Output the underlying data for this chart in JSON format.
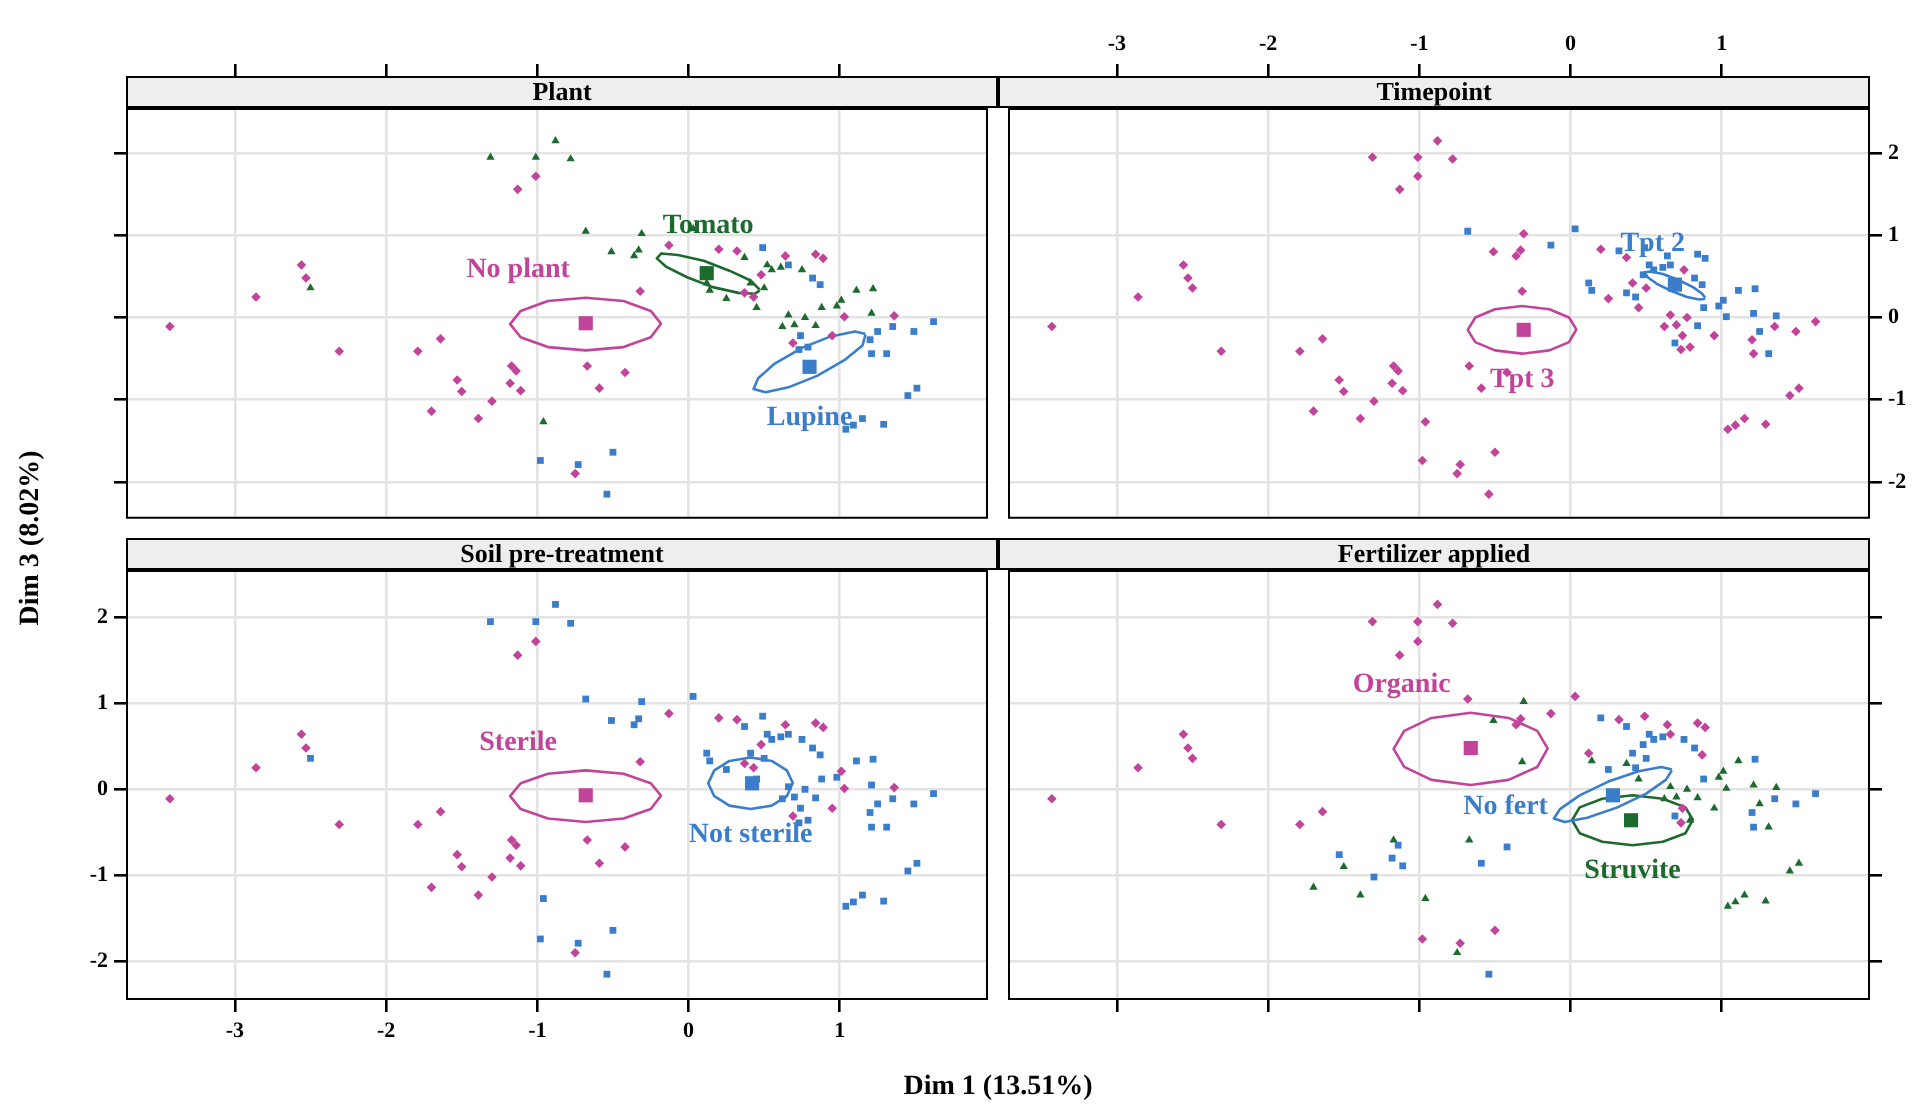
{
  "chart_data": [
    {
      "type": "scatter",
      "title": "Plant",
      "xlim": [
        -3.72,
        1.98
      ],
      "ylim": [
        -2.45,
        2.55
      ],
      "xticks": [
        -3,
        -2,
        -1,
        0,
        1
      ],
      "yticks": [
        -2,
        -1,
        0,
        1,
        2
      ],
      "grid": true,
      "tick_labels": false,
      "series": [
        {
          "type": "scatter",
          "color": "#c2449a",
          "marker": "diamond",
          "x": [
            -1.01,
            -1.13,
            -0.13,
            0.2,
            0.32,
            0.64,
            0.84,
            0.89,
            0.48,
            0.37,
            0.43,
            -0.32,
            1.03,
            1.36,
            0.95,
            0.69,
            -2.56,
            -2.53,
            -2.86,
            -3.43,
            -2.31,
            -1.79,
            -1.64,
            -1.53,
            -1.5,
            -1.7,
            -1.39,
            -1.3,
            -1.17,
            -1.14,
            -1.18,
            -1.11,
            -0.67,
            -0.42,
            -0.59,
            -0.75
          ],
          "values": [
            1.72,
            1.56,
            0.88,
            0.83,
            0.81,
            0.75,
            0.77,
            0.72,
            0.52,
            0.3,
            0.25,
            0.32,
            0.01,
            0.02,
            -0.22,
            -0.31,
            0.64,
            0.48,
            0.25,
            -0.11,
            -0.41,
            -0.41,
            -0.26,
            -0.76,
            -0.9,
            -1.14,
            -1.23,
            -1.02,
            -0.59,
            -0.65,
            -0.8,
            -0.89,
            -0.59,
            -0.67,
            -0.86,
            -1.9
          ]
        },
        {
          "type": "scatter",
          "color": "#c2449a",
          "marker": "square",
          "x": [
            -0.68
          ],
          "values": [
            -0.07
          ]
        },
        {
          "type": "line",
          "name": "No plant",
          "color": "#c2449a",
          "marker": "none",
          "x": [
            -0.18,
            -0.25,
            -0.43,
            -0.68,
            -0.93,
            -1.11,
            -1.18,
            -1.11,
            -0.93,
            -0.68,
            -0.43,
            -0.25,
            -0.18
          ],
          "values": [
            -0.08,
            0.08,
            0.2,
            0.24,
            0.2,
            0.08,
            -0.08,
            -0.24,
            -0.36,
            -0.4,
            -0.36,
            -0.24,
            -0.07
          ]
        },
        {
          "type": "scatter",
          "color": "#1d6a2e",
          "marker": "triangle",
          "x": [
            -0.88,
            -1.31,
            -1.01,
            -0.78,
            -0.68,
            -0.31,
            0.03,
            -0.51,
            -0.33,
            -0.36,
            0.37,
            0.52,
            0.55,
            0.61,
            0.75,
            0.41,
            0.5,
            0.14,
            0.12,
            0.25,
            1.11,
            1.22,
            0.45,
            1.01,
            0.88,
            0.98,
            1.21,
            0.66,
            0.77,
            0.62,
            0.7,
            0.84,
            -2.5,
            -0.96
          ],
          "values": [
            2.15,
            1.95,
            1.95,
            1.93,
            1.05,
            1.02,
            1.08,
            0.8,
            0.82,
            0.75,
            0.73,
            0.64,
            0.58,
            0.61,
            0.58,
            0.42,
            0.36,
            0.33,
            0.42,
            0.23,
            0.33,
            0.35,
            0.12,
            0.21,
            0.12,
            0.14,
            0.05,
            0.03,
            0.0,
            -0.11,
            -0.09,
            -0.1,
            0.36,
            -1.27
          ]
        },
        {
          "type": "scatter",
          "color": "#1d6a2e",
          "marker": "square",
          "x": [
            0.12
          ],
          "values": [
            0.54
          ]
        },
        {
          "type": "line",
          "name": "Tomato",
          "color": "#1d6a2e",
          "marker": "none",
          "x": [
            0.47,
            0.41,
            0.27,
            0.1,
            -0.07,
            -0.18,
            -0.21,
            -0.15,
            -0.01,
            0.16,
            0.33,
            0.44,
            0.47
          ],
          "values": [
            0.34,
            0.45,
            0.57,
            0.69,
            0.76,
            0.78,
            0.72,
            0.62,
            0.49,
            0.37,
            0.3,
            0.29,
            0.33
          ]
        },
        {
          "type": "scatter",
          "color": "#3a7ecb",
          "marker": "square",
          "x": [
            0.49,
            0.66,
            0.82,
            0.87,
            1.62,
            1.35,
            1.49,
            1.25,
            1.2,
            0.74,
            0.73,
            0.79,
            1.21,
            1.31,
            1.51,
            1.45,
            1.15,
            1.09,
            1.04,
            1.29,
            -0.98,
            -0.73,
            -0.5,
            -0.54
          ],
          "values": [
            0.85,
            0.64,
            0.48,
            0.4,
            -0.05,
            -0.11,
            -0.17,
            -0.17,
            -0.27,
            -0.22,
            -0.39,
            -0.36,
            -0.44,
            -0.44,
            -0.86,
            -0.95,
            -1.23,
            -1.31,
            -1.36,
            -1.3,
            -1.74,
            -1.79,
            -1.64,
            -2.15
          ]
        },
        {
          "type": "scatter",
          "color": "#3a7ecb",
          "marker": "square",
          "x": [
            0.8
          ],
          "values": [
            -0.6
          ]
        },
        {
          "type": "line",
          "name": "Lupine",
          "color": "#3a7ecb",
          "marker": "none",
          "x": [
            1.17,
            1.15,
            1.03,
            0.85,
            0.66,
            0.51,
            0.43,
            0.46,
            0.57,
            0.75,
            0.94,
            1.1,
            1.17
          ],
          "values": [
            -0.21,
            -0.34,
            -0.52,
            -0.71,
            -0.85,
            -0.91,
            -0.87,
            -0.74,
            -0.56,
            -0.37,
            -0.23,
            -0.17,
            -0.2
          ]
        }
      ]
    },
    {
      "type": "scatter",
      "title": "Timepoint",
      "xlim": [
        -3.72,
        1.98
      ],
      "ylim": [
        -2.45,
        2.55
      ],
      "xticks": [
        -3,
        -2,
        -1,
        0,
        1
      ],
      "yticks": [
        -2,
        -1,
        0,
        1,
        2
      ],
      "grid": true,
      "series": [
        {
          "type": "scatter",
          "color": "#3a7ecb",
          "marker": "square",
          "x": [
            -0.68,
            0.03,
            -0.13,
            0.32,
            0.49,
            0.64,
            0.84,
            0.89,
            0.66,
            0.52,
            0.55,
            0.61,
            0.48,
            0.82,
            0.87,
            0.14,
            0.12,
            0.37,
            0.43,
            1.11,
            1.22,
            1.01,
            0.88,
            0.98,
            1.21,
            1.03,
            1.36,
            0.84,
            1.25,
            0.69,
            1.31
          ],
          "values": [
            1.05,
            1.08,
            0.88,
            0.81,
            0.85,
            0.75,
            0.77,
            0.72,
            0.64,
            0.64,
            0.58,
            0.61,
            0.52,
            0.48,
            0.4,
            0.33,
            0.42,
            0.3,
            0.25,
            0.33,
            0.35,
            0.21,
            0.12,
            0.14,
            0.05,
            0.01,
            0.02,
            -0.1,
            -0.17,
            -0.31,
            -0.44
          ]
        },
        {
          "type": "scatter",
          "color": "#3a7ecb",
          "marker": "square",
          "x": [
            0.69
          ],
          "values": [
            0.4
          ]
        },
        {
          "type": "line",
          "name": "Tpt 2",
          "color": "#3a7ecb",
          "marker": "none",
          "x": [
            0.89,
            0.85,
            0.77,
            0.67,
            0.57,
            0.51,
            0.49,
            0.53,
            0.61,
            0.71,
            0.81,
            0.87,
            0.89
          ],
          "values": [
            0.23,
            0.22,
            0.25,
            0.32,
            0.41,
            0.49,
            0.55,
            0.56,
            0.53,
            0.46,
            0.37,
            0.29,
            0.24
          ]
        },
        {
          "type": "scatter",
          "color": "#c2449a",
          "marker": "diamond",
          "x": [
            -0.88,
            -1.31,
            -1.01,
            -0.78,
            -1.01,
            -1.13,
            -0.31,
            -0.51,
            -0.33,
            -0.36,
            0.2,
            0.37,
            0.75,
            0.41,
            0.5,
            0.25,
            -0.32,
            0.45,
            0.66,
            0.77,
            1.62,
            0.62,
            0.7,
            1.35,
            1.49,
            1.2,
            0.74,
            0.95,
            0.73,
            0.79,
            1.21,
            1.51,
            1.45,
            1.15,
            1.09,
            1.04,
            1.29,
            -2.56,
            -2.53,
            -2.5,
            -2.86,
            -3.43,
            -2.31,
            -1.79,
            -1.64,
            -1.53,
            -1.5,
            -1.7,
            -1.39,
            -1.3,
            -1.17,
            -1.14,
            -1.18,
            -1.11,
            -0.67,
            -0.42,
            -0.59,
            -0.96,
            -0.98,
            -0.73,
            -0.75,
            -0.5,
            -0.54
          ],
          "values": [
            2.15,
            1.95,
            1.95,
            1.93,
            1.72,
            1.56,
            1.02,
            0.8,
            0.82,
            0.75,
            0.83,
            0.73,
            0.58,
            0.42,
            0.36,
            0.23,
            0.32,
            0.12,
            0.03,
            0.0,
            -0.05,
            -0.11,
            -0.09,
            -0.11,
            -0.17,
            -0.27,
            -0.22,
            -0.22,
            -0.39,
            -0.36,
            -0.44,
            -0.86,
            -0.95,
            -1.23,
            -1.31,
            -1.36,
            -1.3,
            0.64,
            0.48,
            0.36,
            0.25,
            -0.11,
            -0.41,
            -0.41,
            -0.26,
            -0.76,
            -0.9,
            -1.14,
            -1.23,
            -1.02,
            -0.59,
            -0.65,
            -0.8,
            -0.89,
            -0.59,
            -0.67,
            -0.86,
            -1.27,
            -1.74,
            -1.79,
            -1.9,
            -1.64,
            -2.15
          ]
        },
        {
          "type": "scatter",
          "color": "#c2449a",
          "marker": "square",
          "x": [
            -0.31
          ],
          "values": [
            -0.15
          ]
        },
        {
          "type": "line",
          "name": "Tpt 3",
          "color": "#c2449a",
          "marker": "none",
          "x": [
            0.04,
            -0.01,
            -0.14,
            -0.32,
            -0.5,
            -0.63,
            -0.68,
            -0.63,
            -0.5,
            -0.32,
            -0.14,
            -0.01,
            0.04
          ],
          "values": [
            -0.15,
            0,
            0.1,
            0.14,
            0.1,
            0,
            -0.15,
            -0.3,
            -0.4,
            -0.44,
            -0.4,
            -0.3,
            -0.14
          ]
        }
      ]
    },
    {
      "type": "scatter",
      "title": "Soil pre-treatment",
      "xlabel": "Dim 1 (13.51%)",
      "ylabel": "Dim 3 (8.02%)",
      "xlim": [
        -3.72,
        1.98
      ],
      "ylim": [
        -2.45,
        2.55
      ],
      "xticks": [
        -3,
        -2,
        -1,
        0,
        1
      ],
      "yticks": [
        -2,
        -1,
        0,
        1,
        2
      ],
      "grid": true,
      "series": [
        {
          "type": "scatter",
          "color": "#c2449a",
          "marker": "diamond",
          "x": [
            -1.01,
            -1.13,
            -0.13,
            0.2,
            0.32,
            0.64,
            0.84,
            0.89,
            0.48,
            0.37,
            0.43,
            -0.32,
            1.01,
            1.03,
            1.36,
            0.95,
            0.69,
            -2.56,
            -2.53,
            -2.86,
            -3.43,
            -2.31,
            -1.79,
            -1.64,
            -1.53,
            -1.5,
            -1.7,
            -1.39,
            -1.3,
            -1.17,
            -1.14,
            -1.18,
            -1.11,
            -0.67,
            -0.42,
            -0.59,
            -0.75
          ],
          "values": [
            1.72,
            1.56,
            0.88,
            0.83,
            0.81,
            0.75,
            0.77,
            0.72,
            0.52,
            0.3,
            0.25,
            0.32,
            0.21,
            0.01,
            0.02,
            -0.22,
            -0.31,
            0.64,
            0.48,
            0.25,
            -0.11,
            -0.41,
            -0.41,
            -0.26,
            -0.76,
            -0.9,
            -1.14,
            -1.23,
            -1.02,
            -0.59,
            -0.65,
            -0.8,
            -0.89,
            -0.59,
            -0.67,
            -0.86,
            -1.9
          ]
        },
        {
          "type": "scatter",
          "color": "#c2449a",
          "marker": "square",
          "x": [
            -0.68
          ],
          "values": [
            -0.07
          ]
        },
        {
          "type": "line",
          "name": "Sterile",
          "color": "#c2449a",
          "marker": "none",
          "x": [
            -0.18,
            -0.25,
            -0.43,
            -0.68,
            -0.93,
            -1.11,
            -1.18,
            -1.11,
            -0.93,
            -0.68,
            -0.43,
            -0.25,
            -0.18
          ],
          "values": [
            -0.08,
            0.07,
            0.18,
            0.22,
            0.18,
            0.07,
            -0.08,
            -0.23,
            -0.34,
            -0.38,
            -0.34,
            -0.23,
            -0.07
          ]
        },
        {
          "type": "scatter",
          "color": "#3a7ecb",
          "marker": "square",
          "x": [
            -0.88,
            -1.31,
            -1.01,
            -0.78,
            -0.68,
            -0.31,
            0.03,
            -0.51,
            -0.33,
            -0.36,
            0.49,
            0.37,
            0.66,
            0.52,
            0.55,
            0.61,
            0.75,
            0.82,
            0.87,
            0.41,
            0.5,
            0.14,
            0.12,
            0.25,
            1.11,
            1.22,
            0.45,
            0.88,
            0.98,
            1.21,
            0.66,
            0.77,
            1.62,
            0.62,
            0.7,
            0.84,
            1.35,
            1.49,
            1.25,
            1.2,
            0.74,
            0.73,
            0.79,
            1.21,
            1.31,
            1.51,
            1.45,
            1.15,
            1.09,
            1.04,
            1.29,
            -2.5,
            -0.96,
            -0.98,
            -0.73,
            -0.5,
            -0.54
          ],
          "values": [
            2.15,
            1.95,
            1.95,
            1.93,
            1.05,
            1.02,
            1.08,
            0.8,
            0.82,
            0.75,
            0.85,
            0.73,
            0.64,
            0.64,
            0.58,
            0.61,
            0.58,
            0.48,
            0.4,
            0.42,
            0.36,
            0.33,
            0.42,
            0.23,
            0.33,
            0.35,
            0.12,
            0.12,
            0.14,
            0.05,
            0.03,
            0.0,
            -0.05,
            -0.11,
            -0.09,
            -0.1,
            -0.11,
            -0.17,
            -0.17,
            -0.27,
            -0.22,
            -0.39,
            -0.36,
            -0.44,
            -0.44,
            -0.86,
            -0.95,
            -1.23,
            -1.31,
            -1.36,
            -1.3,
            0.36,
            -1.27,
            -1.74,
            -1.79,
            -1.64,
            -2.15
          ]
        },
        {
          "type": "scatter",
          "color": "#3a7ecb",
          "marker": "square",
          "x": [
            0.42
          ],
          "values": [
            0.07
          ]
        },
        {
          "type": "line",
          "name": "Not sterile",
          "color": "#3a7ecb",
          "marker": "none",
          "x": [
            0.69,
            0.65,
            0.55,
            0.41,
            0.27,
            0.17,
            0.13,
            0.17,
            0.27,
            0.41,
            0.55,
            0.65,
            0.69
          ],
          "values": [
            0.07,
            0.22,
            0.33,
            0.37,
            0.33,
            0.22,
            0.07,
            -0.08,
            -0.19,
            -0.23,
            -0.19,
            -0.08,
            0.08
          ]
        }
      ]
    },
    {
      "type": "scatter",
      "title": "Fertilizer applied",
      "xlim": [
        -3.72,
        1.98
      ],
      "ylim": [
        -2.45,
        2.55
      ],
      "xticks": [
        -3,
        -2,
        -1,
        0,
        1
      ],
      "yticks": [
        -2,
        -1,
        0,
        1,
        2
      ],
      "grid": true,
      "tick_labels": false,
      "series": [
        {
          "type": "scatter",
          "color": "#c2449a",
          "marker": "diamond",
          "x": [
            -0.88,
            -1.31,
            -1.01,
            -0.78,
            -1.01,
            -1.13,
            -0.68,
            0.03,
            -0.33,
            -0.36,
            -0.13,
            0.32,
            0.49,
            0.64,
            0.84,
            0.89,
            0.66,
            0.87,
            0.12,
            0.74,
            0.73,
            -2.56,
            -2.53,
            -2.5,
            -2.86,
            -3.43,
            -2.31,
            -1.79,
            -1.64,
            -0.98,
            -0.73,
            -0.5
          ],
          "values": [
            2.15,
            1.95,
            1.95,
            1.93,
            1.72,
            1.56,
            1.05,
            1.08,
            0.82,
            0.75,
            0.88,
            0.81,
            0.85,
            0.75,
            0.77,
            0.72,
            0.64,
            0.4,
            0.42,
            -0.22,
            -0.39,
            0.64,
            0.48,
            0.36,
            0.25,
            -0.11,
            -0.41,
            -0.41,
            -0.26,
            -1.74,
            -1.79,
            -1.64
          ]
        },
        {
          "type": "scatter",
          "color": "#c2449a",
          "marker": "square",
          "x": [
            -0.66
          ],
          "values": [
            0.48
          ]
        },
        {
          "type": "line",
          "name": "Organic",
          "color": "#c2449a",
          "marker": "none",
          "x": [
            -0.15,
            -0.22,
            -0.41,
            -0.66,
            -0.92,
            -1.1,
            -1.17,
            -1.1,
            -0.92,
            -0.66,
            -0.41,
            -0.22,
            -0.15
          ],
          "values": [
            0.47,
            0.68,
            0.83,
            0.89,
            0.83,
            0.68,
            0.47,
            0.26,
            0.11,
            0.05,
            0.11,
            0.26,
            0.48
          ]
        },
        {
          "type": "scatter",
          "color": "#3a7ecb",
          "marker": "square",
          "x": [
            0.2,
            0.37,
            0.52,
            0.55,
            0.61,
            0.75,
            0.48,
            0.82,
            0.41,
            0.5,
            0.25,
            0.43,
            1.22,
            0.88,
            1.62,
            1.35,
            1.49,
            1.2,
            0.69,
            1.21,
            -1.53,
            -1.3,
            -1.14,
            -1.18,
            -1.11,
            -0.42,
            -0.59,
            -0.54
          ],
          "values": [
            0.83,
            0.73,
            0.64,
            0.58,
            0.61,
            0.58,
            0.52,
            0.48,
            0.42,
            0.36,
            0.23,
            0.25,
            0.35,
            0.12,
            -0.05,
            -0.11,
            -0.17,
            -0.27,
            -0.31,
            -0.44,
            -0.76,
            -1.02,
            -0.65,
            -0.8,
            -0.89,
            -0.67,
            -0.86,
            -2.15
          ]
        },
        {
          "type": "scatter",
          "color": "#3a7ecb",
          "marker": "square",
          "x": [
            0.28
          ],
          "values": [
            -0.07
          ]
        },
        {
          "type": "line",
          "name": "No fert",
          "color": "#3a7ecb",
          "marker": "none",
          "x": [
            0.67,
            0.63,
            0.5,
            0.31,
            0.11,
            -0.04,
            -0.11,
            -0.07,
            0.06,
            0.25,
            0.45,
            0.6,
            0.67
          ],
          "values": [
            0.22,
            0.11,
            -0.05,
            -0.21,
            -0.33,
            -0.38,
            -0.34,
            -0.23,
            -0.07,
            0.09,
            0.21,
            0.26,
            0.23
          ]
        },
        {
          "type": "scatter",
          "color": "#1d6a2e",
          "marker": "triangle",
          "x": [
            -0.31,
            -0.51,
            0.14,
            0.37,
            -0.32,
            1.11,
            0.45,
            1.01,
            0.98,
            1.21,
            0.66,
            0.77,
            1.03,
            1.36,
            0.62,
            0.7,
            0.84,
            1.25,
            0.95,
            0.79,
            1.31,
            1.51,
            1.45,
            1.15,
            1.09,
            1.04,
            1.29,
            -1.5,
            -1.7,
            -1.39,
            -1.17,
            -0.67,
            -0.96,
            -0.75
          ],
          "values": [
            1.02,
            0.8,
            0.33,
            0.3,
            0.32,
            0.33,
            0.12,
            0.21,
            0.14,
            0.05,
            0.03,
            0.0,
            0.01,
            0.02,
            -0.11,
            -0.09,
            -0.1,
            -0.17,
            -0.22,
            -0.36,
            -0.44,
            -0.86,
            -0.95,
            -1.23,
            -1.31,
            -1.36,
            -1.3,
            -0.9,
            -1.14,
            -1.23,
            -0.59,
            -0.59,
            -1.27,
            -1.9
          ]
        },
        {
          "type": "scatter",
          "color": "#1d6a2e",
          "marker": "square",
          "x": [
            0.4
          ],
          "values": [
            -0.36
          ]
        },
        {
          "type": "line",
          "name": "Struvite",
          "color": "#1d6a2e",
          "marker": "none",
          "x": [
            0.81,
            0.76,
            0.61,
            0.41,
            0.21,
            0.06,
            0.01,
            0.06,
            0.21,
            0.41,
            0.61,
            0.76,
            0.81
          ],
          "values": [
            -0.36,
            -0.21,
            -0.11,
            -0.07,
            -0.11,
            -0.21,
            -0.36,
            -0.51,
            -0.61,
            -0.65,
            -0.61,
            -0.51,
            -0.35
          ]
        }
      ]
    }
  ]
}
